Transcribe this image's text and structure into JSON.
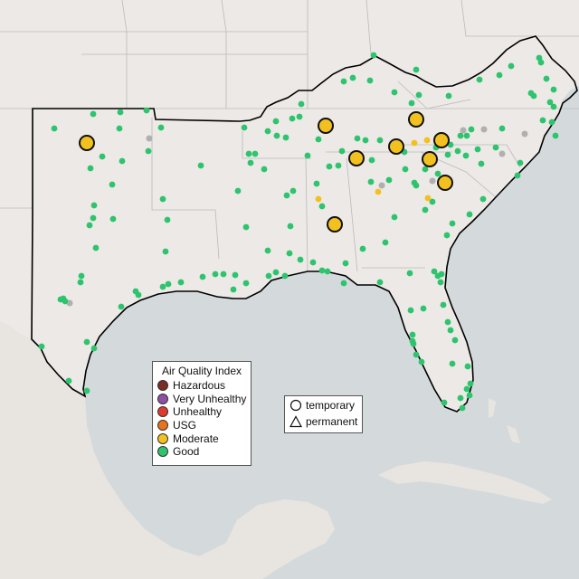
{
  "legend": {
    "title": "Air Quality Index",
    "items": [
      {
        "label": "Hazardous",
        "color": "#7e2a25"
      },
      {
        "label": "Very Unhealthy",
        "color": "#8e4fa6"
      },
      {
        "label": "Unhealthy",
        "color": "#e03a2c"
      },
      {
        "label": "USG",
        "color": "#e8731a"
      },
      {
        "label": "Moderate",
        "color": "#f2c01f"
      },
      {
        "label": "Good",
        "color": "#2ec46e"
      }
    ]
  },
  "monitor_types": {
    "items": [
      {
        "label": "temporary",
        "shape": "circle-icon"
      },
      {
        "label": "permanent",
        "shape": "triangle-icon"
      }
    ]
  },
  "colors": {
    "ocean": "#d4dadc",
    "land": "#ece9e6",
    "foreign_land": "#e8e5e1",
    "region_outline": "#000000",
    "state_border": "#bbbbbb",
    "no_data": "#b0b0b0"
  }
}
